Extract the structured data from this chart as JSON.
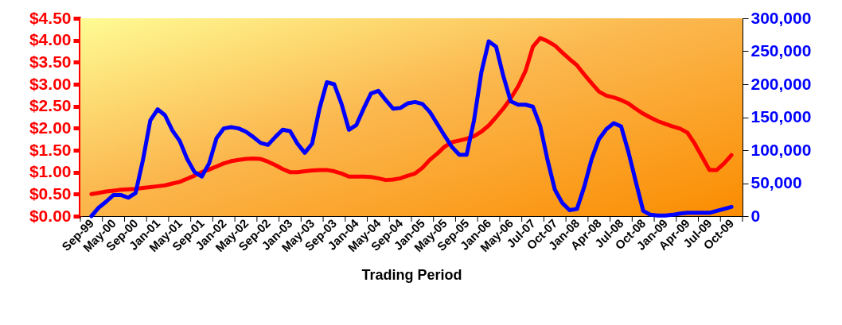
{
  "chart_data": {
    "type": "line",
    "xlabel": "Trading Period",
    "categories": [
      null,
      "Sep-99",
      null,
      null,
      "May-00",
      null,
      null,
      "Sep-00",
      null,
      null,
      "Jan-01",
      null,
      null,
      "May-01",
      null,
      null,
      "Sep-01",
      null,
      null,
      "Jan-02",
      null,
      null,
      "May-02",
      null,
      null,
      "Sep-02",
      null,
      null,
      "Jan-03",
      null,
      null,
      "May-03",
      null,
      null,
      "Sep-03",
      null,
      null,
      "Jan-04",
      null,
      null,
      "May-04",
      null,
      null,
      "Sep-04",
      null,
      null,
      "Jan-05",
      null,
      null,
      "May-05",
      null,
      null,
      "Sep-05",
      null,
      null,
      "Jan-06",
      null,
      null,
      "May-06",
      null,
      null,
      "Jul-07",
      null,
      null,
      "Oct-07",
      null,
      null,
      "Jan-08",
      null,
      null,
      "Apr-08",
      null,
      null,
      "Jul-08",
      null,
      null,
      "Oct-08",
      null,
      null,
      "Jan-09",
      null,
      null,
      "Apr-09",
      null,
      null,
      "Jul-09",
      null,
      null,
      "Oct-09",
      null
    ],
    "series": [
      {
        "color": "#ff0000",
        "values": [
          null,
          0.5,
          0.53,
          0.56,
          0.58,
          0.6,
          0.61,
          0.62,
          0.64,
          0.66,
          0.68,
          0.7,
          0.74,
          0.78,
          0.85,
          0.92,
          1.0,
          1.06,
          1.13,
          1.2,
          1.25,
          1.28,
          1.3,
          1.31,
          1.3,
          1.24,
          1.16,
          1.07,
          1.0,
          1.0,
          1.02,
          1.04,
          1.05,
          1.05,
          1.02,
          0.97,
          0.9,
          0.9,
          0.9,
          0.89,
          0.86,
          0.82,
          0.83,
          0.86,
          0.92,
          0.97,
          1.1,
          1.28,
          1.42,
          1.58,
          1.68,
          1.72,
          1.76,
          1.82,
          1.92,
          2.06,
          2.25,
          2.45,
          2.68,
          2.95,
          3.3,
          3.85,
          4.05,
          3.98,
          3.88,
          3.72,
          3.57,
          3.43,
          3.22,
          3.02,
          2.83,
          2.74,
          2.7,
          2.64,
          2.56,
          2.44,
          2.33,
          2.24,
          2.16,
          2.1,
          2.04,
          1.99,
          1.9,
          1.65,
          1.35,
          1.05,
          1.05,
          1.2,
          1.39,
          null
        ]
      },
      {
        "color": "#0000ff",
        "axis": "y2",
        "values": [
          null,
          0,
          13000,
          22000,
          32000,
          32000,
          28000,
          35000,
          85000,
          145000,
          162000,
          153000,
          130000,
          114000,
          87000,
          67000,
          60000,
          80000,
          118000,
          133000,
          135000,
          133000,
          128000,
          120000,
          111000,
          108000,
          120000,
          131000,
          129000,
          110000,
          96000,
          110000,
          163000,
          203000,
          200000,
          170000,
          131000,
          138000,
          163000,
          186000,
          190000,
          176000,
          163000,
          164000,
          171000,
          173000,
          170000,
          158000,
          140000,
          122000,
          105000,
          93000,
          93000,
          145000,
          218000,
          265000,
          257000,
          212000,
          174000,
          169000,
          169000,
          166000,
          137000,
          85000,
          40000,
          20000,
          9000,
          11000,
          45000,
          87000,
          117000,
          132000,
          141000,
          136000,
          97000,
          52000,
          8000,
          2000,
          1000,
          1000,
          2000,
          4000,
          5000,
          5000,
          5000,
          5000,
          8000,
          11000,
          14000,
          null
        ]
      }
    ],
    "ylim": [
      0,
      4.5
    ],
    "yticks": [
      {
        "value": 0,
        "label": "$0.00"
      },
      {
        "value": 0.5,
        "label": "$0.50"
      },
      {
        "value": 1,
        "label": "$1.00"
      },
      {
        "value": 1.5,
        "label": "$1.50"
      },
      {
        "value": 2,
        "label": "$2.00"
      },
      {
        "value": 2.5,
        "label": "$2.50"
      },
      {
        "value": 3,
        "label": "$3.00"
      },
      {
        "value": 3.5,
        "label": "$3.50"
      },
      {
        "value": 4,
        "label": "$4.00"
      },
      {
        "value": 4.5,
        "label": "$4.50"
      }
    ],
    "y2lim": [
      0,
      300000
    ],
    "y2ticks": [
      0,
      {
        "value": 50000,
        "label": "50,000"
      },
      {
        "value": 100000,
        "label": "100,000"
      },
      {
        "value": 150000,
        "label": "150,000"
      },
      {
        "value": 200000,
        "label": "200,000"
      },
      {
        "value": 250000,
        "label": "250,000"
      },
      {
        "value": 300000,
        "label": "300,000"
      }
    ],
    "grid": false,
    "line_style": "solid",
    "marker": "none"
  }
}
